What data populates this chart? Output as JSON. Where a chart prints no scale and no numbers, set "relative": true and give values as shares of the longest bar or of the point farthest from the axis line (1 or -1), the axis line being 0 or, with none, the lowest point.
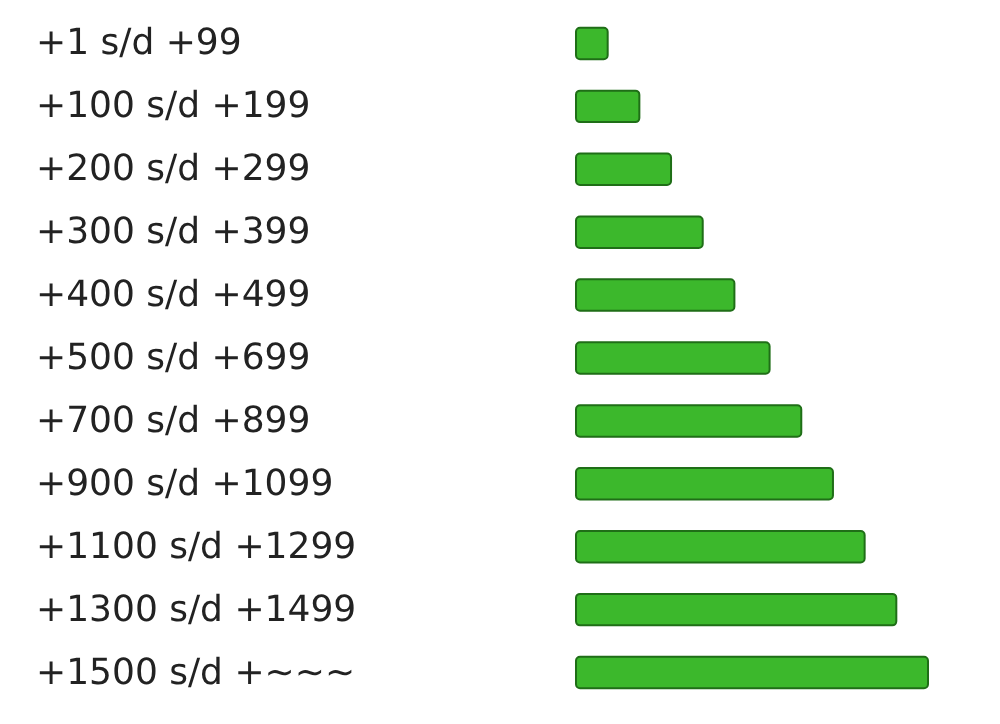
{
  "chart_data": {
    "type": "bar",
    "orientation": "horizontal",
    "relative": true,
    "categories": [
      "+1 s/d +99",
      "+100 s/d +199",
      "+200 s/d +299",
      "+300 s/d +399",
      "+400 s/d +499",
      "+500 s/d +699",
      "+700 s/d +899",
      "+900 s/d +1099",
      "+1100 s/d +1299",
      "+1300 s/d +1499",
      "+1500 s/d +~~~"
    ],
    "values": [
      0.09,
      0.18,
      0.27,
      0.36,
      0.45,
      0.55,
      0.64,
      0.73,
      0.82,
      0.91,
      1
    ],
    "color": "#3cb82c"
  }
}
